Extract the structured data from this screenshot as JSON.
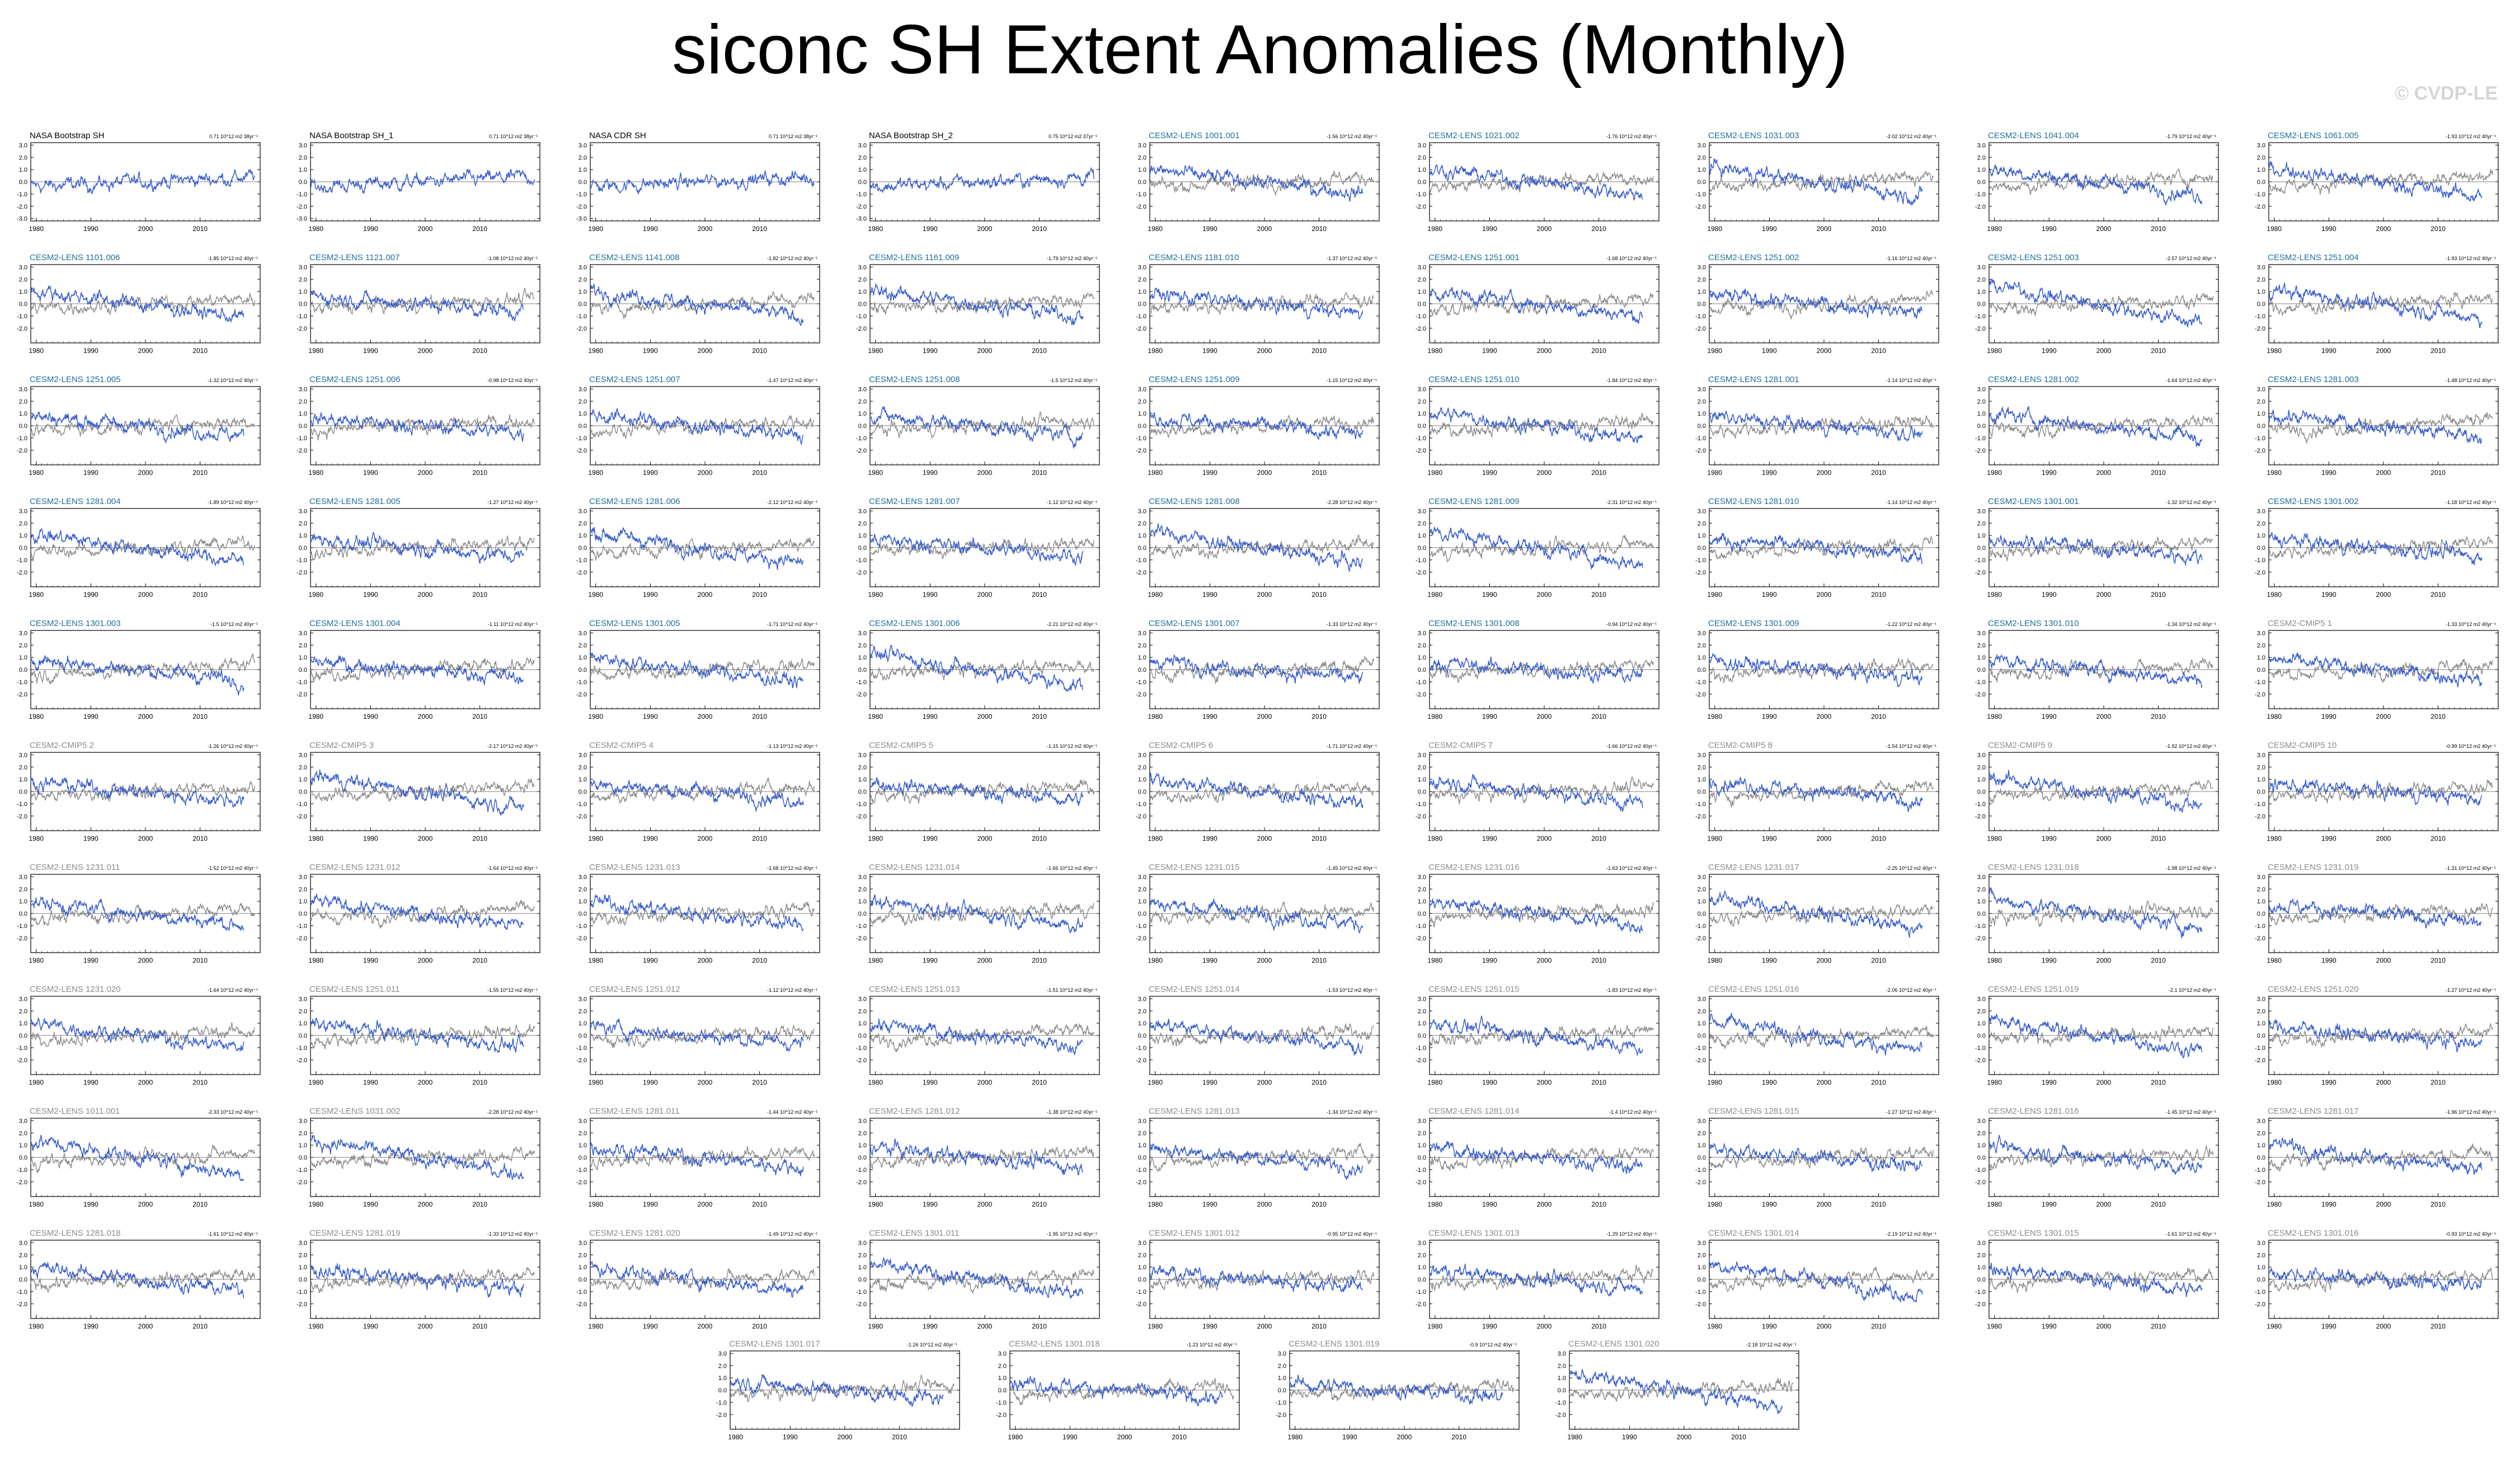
{
  "title": "siconc SH Extent Anomalies (Monthly)",
  "watermark": "© CVDP-LE",
  "colors": {
    "model_line": "#3a5fcd",
    "obs_line": "#8c8c8c",
    "title_obs": "#000000",
    "title_lens": "#1f6f9c",
    "title_cmip": "#8c8c8c"
  },
  "chart_data": {
    "type": "line",
    "panel_count": 94,
    "x_range": [
      1979,
      2021
    ],
    "x_ticks": [
      "1980",
      "1990",
      "2000",
      "2010"
    ],
    "y_ticks_default": [
      "3.0",
      "2.0",
      "1.0",
      "0.0",
      "-1.0",
      "-2.0"
    ],
    "y_ticks_obs": [
      "3.0",
      "2.0",
      "1.0",
      "0.0",
      "-1.0",
      "-2.0",
      "-3.0"
    ],
    "panels": [
      {
        "title": "NASA Bootstrap SH",
        "trend": "0.71 10^12 m2 38yr⁻¹",
        "group": "obs"
      },
      {
        "title": "NASA Bootstrap SH_1",
        "trend": "0.71 10^12 m2 38yr⁻¹",
        "group": "obs"
      },
      {
        "title": "NASA CDR SH",
        "trend": "0.71 10^12 m2 38yr⁻¹",
        "group": "obs"
      },
      {
        "title": "NASA Bootstrap SH_2",
        "trend": "0.75 10^12 m2 37yr⁻¹",
        "group": "obs"
      },
      {
        "title": "CESM2-LENS 1001.001",
        "trend": "-1.56 10^12 m2 40yr⁻¹",
        "group": "lens"
      },
      {
        "title": "CESM2-LENS 1021.002",
        "trend": "-1.76 10^12 m2 40yr⁻¹",
        "group": "lens"
      },
      {
        "title": "CESM2-LENS 1031.003",
        "trend": "-2.02 10^12 m2 40yr⁻¹",
        "group": "lens"
      },
      {
        "title": "CESM2-LENS 1041.004",
        "trend": "-1.79 10^12 m2 40yr⁻¹",
        "group": "lens"
      },
      {
        "title": "CESM2-LENS 1061.005",
        "trend": "-1.93 10^12 m2 40yr⁻¹",
        "group": "lens"
      },
      {
        "title": "CESM2-LENS 1101.006",
        "trend": "-1.85 10^12 m2 40yr⁻¹",
        "group": "lens"
      },
      {
        "title": "CESM2-LENS 1121.007",
        "trend": "-1.08 10^12 m2 40yr⁻¹",
        "group": "lens"
      },
      {
        "title": "CESM2-LENS 1141.008",
        "trend": "-1.82 10^12 m2 40yr⁻¹",
        "group": "lens"
      },
      {
        "title": "CESM2-LENS 1161.009",
        "trend": "-1.79 10^12 m2 40yr⁻¹",
        "group": "lens"
      },
      {
        "title": "CESM2-LENS 1181.010",
        "trend": "-1.37 10^12 m2 40yr⁻¹",
        "group": "lens"
      },
      {
        "title": "CESM2-LENS 1251.001",
        "trend": "-1.68 10^12 m2 40yr⁻¹",
        "group": "lens"
      },
      {
        "title": "CESM2-LENS 1251.002",
        "trend": "-1.16 10^12 m2 40yr⁻¹",
        "group": "lens"
      },
      {
        "title": "CESM2-LENS 1251.003",
        "trend": "-2.57 10^12 m2 40yr⁻¹",
        "group": "lens"
      },
      {
        "title": "CESM2-LENS 1251.004",
        "trend": "-1.93 10^12 m2 40yr⁻¹",
        "group": "lens"
      },
      {
        "title": "CESM2-LENS 1251.005",
        "trend": "-1.32 10^12 m2 40yr⁻¹",
        "group": "lens"
      },
      {
        "title": "CESM2-LENS 1251.006",
        "trend": "-0.98 10^12 m2 40yr⁻¹",
        "group": "lens"
      },
      {
        "title": "CESM2-LENS 1251.007",
        "trend": "-1.47 10^12 m2 40yr⁻¹",
        "group": "lens"
      },
      {
        "title": "CESM2-LENS 1251.008",
        "trend": "-1.5 10^12 m2 40yr⁻¹",
        "group": "lens"
      },
      {
        "title": "CESM2-LENS 1251.009",
        "trend": "-1.15 10^12 m2 40yr⁻¹",
        "group": "lens"
      },
      {
        "title": "CESM2-LENS 1251.010",
        "trend": "-1.84 10^12 m2 40yr⁻¹",
        "group": "lens"
      },
      {
        "title": "CESM2-LENS 1281.001",
        "trend": "-1.14 10^12 m2 40yr⁻¹",
        "group": "lens"
      },
      {
        "title": "CESM2-LENS 1281.002",
        "trend": "-1.64 10^12 m2 40yr⁻¹",
        "group": "lens"
      },
      {
        "title": "CESM2-LENS 1281.003",
        "trend": "-1.48 10^12 m2 40yr⁻¹",
        "group": "lens"
      },
      {
        "title": "CESM2-LENS 1281.004",
        "trend": "-1.89 10^12 m2 40yr⁻¹",
        "group": "lens"
      },
      {
        "title": "CESM2-LENS 1281.005",
        "trend": "-1.27 10^12 m2 40yr⁻¹",
        "group": "lens"
      },
      {
        "title": "CESM2-LENS 1281.006",
        "trend": "-2.12 10^12 m2 40yr⁻¹",
        "group": "lens"
      },
      {
        "title": "CESM2-LENS 1281.007",
        "trend": "-1.12 10^12 m2 40yr⁻¹",
        "group": "lens"
      },
      {
        "title": "CESM2-LENS 1281.008",
        "trend": "-2.28 10^12 m2 40yr⁻¹",
        "group": "lens"
      },
      {
        "title": "CESM2-LENS 1281.009",
        "trend": "-2.31 10^12 m2 40yr⁻¹",
        "group": "lens"
      },
      {
        "title": "CESM2-LENS 1281.010",
        "trend": "-1.14 10^12 m2 40yr⁻¹",
        "group": "lens"
      },
      {
        "title": "CESM2-LENS 1301.001",
        "trend": "-1.32 10^12 m2 40yr⁻¹",
        "group": "lens"
      },
      {
        "title": "CESM2-LENS 1301.002",
        "trend": "-1.18 10^12 m2 40yr⁻¹",
        "group": "lens"
      },
      {
        "title": "CESM2-LENS 1301.003",
        "trend": "-1.5 10^12 m2 40yr⁻¹",
        "group": "lens"
      },
      {
        "title": "CESM2-LENS 1301.004",
        "trend": "-1.11 10^12 m2 40yr⁻¹",
        "group": "lens"
      },
      {
        "title": "CESM2-LENS 1301.005",
        "trend": "-1.71 10^12 m2 40yr⁻¹",
        "group": "lens"
      },
      {
        "title": "CESM2-LENS 1301.006",
        "trend": "-2.21 10^12 m2 40yr⁻¹",
        "group": "lens"
      },
      {
        "title": "CESM2-LENS 1301.007",
        "trend": "-1.33 10^12 m2 40yr⁻¹",
        "group": "lens"
      },
      {
        "title": "CESM2-LENS 1301.008",
        "trend": "-0.94 10^12 m2 40yr⁻¹",
        "group": "lens"
      },
      {
        "title": "CESM2-LENS 1301.009",
        "trend": "-1.22 10^12 m2 40yr⁻¹",
        "group": "lens"
      },
      {
        "title": "CESM2-LENS 1301.010",
        "trend": "-1.34 10^12 m2 40yr⁻¹",
        "group": "lens"
      },
      {
        "title": "CESM2-CMIP5 1",
        "trend": "-1.33 10^12 m2 40yr⁻¹",
        "group": "cmip"
      },
      {
        "title": "CESM2-CMIP5 2",
        "trend": "-1.26 10^12 m2 40yr⁻¹",
        "group": "cmip"
      },
      {
        "title": "CESM2-CMIP5 3",
        "trend": "-2.17 10^12 m2 40yr⁻¹",
        "group": "cmip"
      },
      {
        "title": "CESM2-CMIP5 4",
        "trend": "-1.13 10^12 m2 40yr⁻¹",
        "group": "cmip"
      },
      {
        "title": "CESM2-CMIP5 5",
        "trend": "-1.15 10^12 m2 40yr⁻¹",
        "group": "cmip"
      },
      {
        "title": "CESM2-CMIP5 6",
        "trend": "-1.71 10^12 m2 40yr⁻¹",
        "group": "cmip"
      },
      {
        "title": "CESM2-CMIP5 7",
        "trend": "-1.66 10^12 m2 40yr⁻¹",
        "group": "cmip"
      },
      {
        "title": "CESM2-CMIP5 8",
        "trend": "-1.54 10^12 m2 40yr⁻¹",
        "group": "cmip"
      },
      {
        "title": "CESM2-CMIP5 9",
        "trend": "-1.92 10^12 m2 40yr⁻¹",
        "group": "cmip"
      },
      {
        "title": "CESM2-CMIP5 10",
        "trend": "-0.99 10^12 m2 40yr⁻¹",
        "group": "cmip"
      },
      {
        "title": "CESM2-LENS 1231.011",
        "trend": "-1.52 10^12 m2 40yr⁻¹",
        "group": "cmip"
      },
      {
        "title": "CESM2-LENS 1231.012",
        "trend": "-1.64 10^12 m2 40yr⁻¹",
        "group": "cmip"
      },
      {
        "title": "CESM2-LENS 1231.013",
        "trend": "-1.68 10^12 m2 40yr⁻¹",
        "group": "cmip"
      },
      {
        "title": "CESM2-LENS 1231.014",
        "trend": "-1.66 10^12 m2 40yr⁻¹",
        "group": "cmip"
      },
      {
        "title": "CESM2-LENS 1231.015",
        "trend": "-1.45 10^12 m2 40yr⁻¹",
        "group": "cmip"
      },
      {
        "title": "CESM2-LENS 1231.016",
        "trend": "-1.63 10^12 m2 40yr⁻¹",
        "group": "cmip"
      },
      {
        "title": "CESM2-LENS 1231.017",
        "trend": "-2.25 10^12 m2 40yr⁻¹",
        "group": "cmip"
      },
      {
        "title": "CESM2-LENS 1231.018",
        "trend": "-1.98 10^12 m2 40yr⁻¹",
        "group": "cmip"
      },
      {
        "title": "CESM2-LENS 1231.019",
        "trend": "-1.31 10^12 m2 40yr⁻¹",
        "group": "cmip"
      },
      {
        "title": "CESM2-LENS 1231.020",
        "trend": "-1.64 10^12 m2 40yr⁻¹",
        "group": "cmip"
      },
      {
        "title": "CESM2-LENS 1251.011",
        "trend": "-1.55 10^12 m2 40yr⁻¹",
        "group": "cmip"
      },
      {
        "title": "CESM2-LENS 1251.012",
        "trend": "-1.12 10^12 m2 40yr⁻¹",
        "group": "cmip"
      },
      {
        "title": "CESM2-LENS 1251.013",
        "trend": "-1.51 10^12 m2 40yr⁻¹",
        "group": "cmip"
      },
      {
        "title": "CESM2-LENS 1251.014",
        "trend": "-1.53 10^12 m2 40yr⁻¹",
        "group": "cmip"
      },
      {
        "title": "CESM2-LENS 1251.015",
        "trend": "-1.83 10^12 m2 40yr⁻¹",
        "group": "cmip"
      },
      {
        "title": "CESM2-LENS 1251.016",
        "trend": "-2.06 10^12 m2 40yr⁻¹",
        "group": "cmip"
      },
      {
        "title": "CESM2-LENS 1251.019",
        "trend": "-2.1 10^12 m2 40yr⁻¹",
        "group": "cmip"
      },
      {
        "title": "CESM2-LENS 1251.020",
        "trend": "-1.27 10^12 m2 40yr⁻¹",
        "group": "cmip"
      },
      {
        "title": "CESM2-LENS 1011.001",
        "trend": "-2.33 10^12 m2 40yr⁻¹",
        "group": "cmip"
      },
      {
        "title": "CESM2-LENS 1031.002",
        "trend": "-2.28 10^12 m2 40yr⁻¹",
        "group": "cmip"
      },
      {
        "title": "CESM2-LENS 1281.011",
        "trend": "-1.44 10^12 m2 40yr⁻¹",
        "group": "cmip"
      },
      {
        "title": "CESM2-LENS 1281.012",
        "trend": "-1.38 10^12 m2 40yr⁻¹",
        "group": "cmip"
      },
      {
        "title": "CESM2-LENS 1281.013",
        "trend": "-1.34 10^12 m2 40yr⁻¹",
        "group": "cmip"
      },
      {
        "title": "CESM2-LENS 1281.014",
        "trend": "-1.4 10^12 m2 40yr⁻¹",
        "group": "cmip"
      },
      {
        "title": "CESM2-LENS 1281.015",
        "trend": "-1.27 10^12 m2 40yr⁻¹",
        "group": "cmip"
      },
      {
        "title": "CESM2-LENS 1281.016",
        "trend": "-1.45 10^12 m2 40yr⁻¹",
        "group": "cmip"
      },
      {
        "title": "CESM2-LENS 1281.017",
        "trend": "-1.96 10^12 m2 40yr⁻¹",
        "group": "cmip"
      },
      {
        "title": "CESM2-LENS 1281.018",
        "trend": "-1.61 10^12 m2 40yr⁻¹",
        "group": "cmip"
      },
      {
        "title": "CESM2-LENS 1281.019",
        "trend": "-1.33 10^12 m2 40yr⁻¹",
        "group": "cmip"
      },
      {
        "title": "CESM2-LENS 1281.020",
        "trend": "-1.49 10^12 m2 40yr⁻¹",
        "group": "cmip"
      },
      {
        "title": "CESM2-LENS 1301.011",
        "trend": "-1.95 10^12 m2 40yr⁻¹",
        "group": "cmip"
      },
      {
        "title": "CESM2-LENS 1301.012",
        "trend": "-0.95 10^12 m2 40yr⁻¹",
        "group": "cmip"
      },
      {
        "title": "CESM2-LENS 1301.013",
        "trend": "-1.29 10^12 m2 40yr⁻¹",
        "group": "cmip"
      },
      {
        "title": "CESM2-LENS 1301.014",
        "trend": "-2.19 10^12 m2 40yr⁻¹",
        "group": "cmip"
      },
      {
        "title": "CESM2-LENS 1301.015",
        "trend": "-1.61 10^12 m2 40yr⁻¹",
        "group": "cmip"
      },
      {
        "title": "CESM2-LENS 1301.016",
        "trend": "-0.93 10^12 m2 40yr⁻¹",
        "group": "cmip"
      },
      {
        "title": "CESM2-LENS 1301.017",
        "trend": "-1.26 10^12 m2 40yr⁻¹",
        "group": "cmip"
      },
      {
        "title": "CESM2-LENS 1301.018",
        "trend": "-1.23 10^12 m2 40yr⁻¹",
        "group": "cmip"
      },
      {
        "title": "CESM2-LENS 1301.019",
        "trend": "-0.9 10^12 m2 40yr⁻¹",
        "group": "cmip"
      },
      {
        "title": "CESM2-LENS 1301.020",
        "trend": "-2.18 10^12 m2 40yr⁻¹",
        "group": "cmip"
      }
    ]
  }
}
